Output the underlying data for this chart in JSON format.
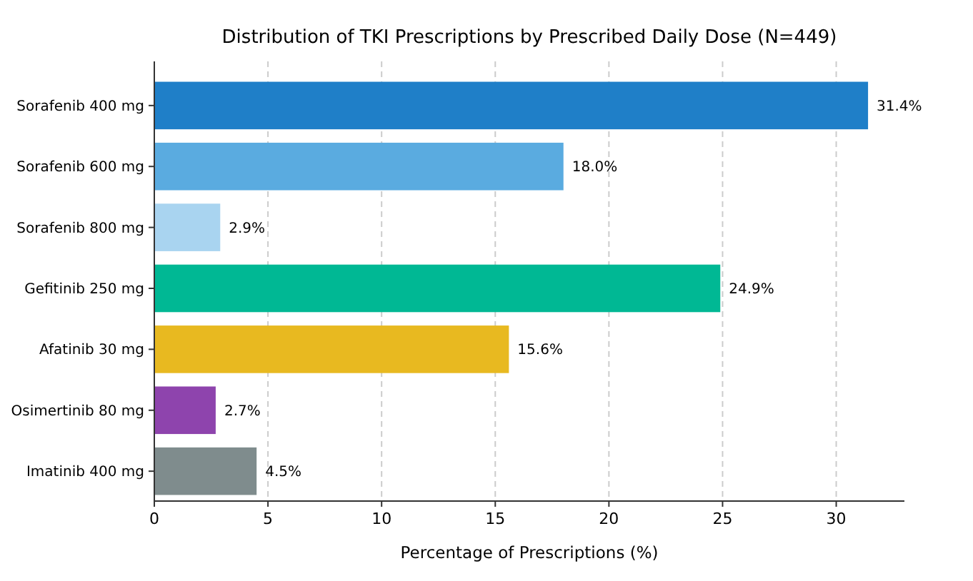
{
  "chart_data": {
    "type": "bar",
    "orientation": "horizontal",
    "title": "Distribution of TKI Prescriptions by Prescribed Daily Dose (N=449)",
    "xlabel": "Percentage of Prescriptions (%)",
    "categories": [
      "Sorafenib 400 mg",
      "Sorafenib 600 mg",
      "Sorafenib 800 mg",
      "Gefitinib 250 mg",
      "Afatinib 30 mg",
      "Osimertinib 80 mg",
      "Imatinib 400 mg"
    ],
    "values": [
      31.4,
      18.0,
      2.9,
      24.9,
      15.6,
      2.7,
      4.5
    ],
    "colors": [
      "#1f7fc8",
      "#5aabe0",
      "#a9d4f0",
      "#00b894",
      "#e8b920",
      "#8e44ad",
      "#7f8c8d"
    ],
    "value_labels": [
      "31.4%",
      "18.0%",
      "2.9%",
      "24.9%",
      "15.6%",
      "2.7%",
      "4.5%"
    ],
    "xlim": [
      0,
      33
    ],
    "xticks": [
      0,
      5,
      10,
      15,
      20,
      25,
      30
    ],
    "grid": "x"
  }
}
